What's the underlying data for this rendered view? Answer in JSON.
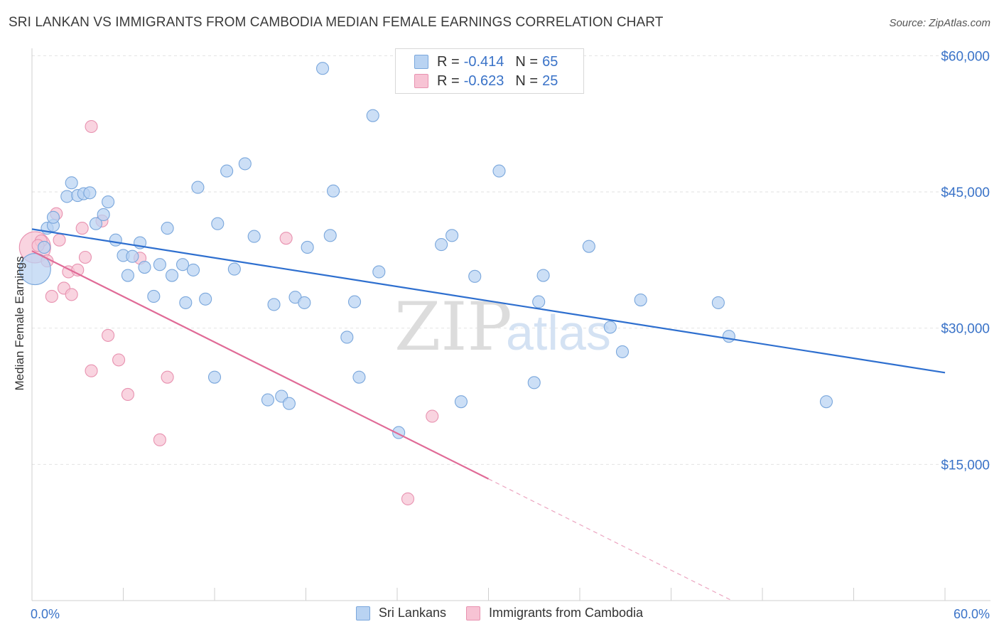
{
  "header": {
    "title": "SRI LANKAN VS IMMIGRANTS FROM CAMBODIA MEDIAN FEMALE EARNINGS CORRELATION CHART",
    "source": "Source: ZipAtlas.com"
  },
  "watermark": {
    "zip": "ZIP",
    "atlas": "atlas"
  },
  "legend_top": {
    "rows": [
      {
        "r_label": "R =",
        "r_value": "-0.414",
        "n_label": "N =",
        "n_value": "65"
      },
      {
        "r_label": "R =",
        "r_value": "-0.623",
        "n_label": "N =",
        "n_value": "25"
      }
    ]
  },
  "colors": {
    "blue_fill": "#b9d3f2",
    "blue_stroke": "#7aa7dc",
    "blue_line": "#2e6fcf",
    "pink_fill": "#f7c3d4",
    "pink_stroke": "#e892b0",
    "pink_line": "#e06b97",
    "accent_text": "#3a73c8",
    "grid": "#e2e2e2"
  },
  "chart_data": {
    "type": "scatter",
    "title": "SRI LANKAN VS IMMIGRANTS FROM CAMBODIA MEDIAN FEMALE EARNINGS CORRELATION CHART",
    "xlabel": "",
    "ylabel": "Median Female Earnings",
    "xlim": [
      0,
      60
    ],
    "ylim": [
      0,
      63000
    ],
    "x_tick_labels": [
      "0.0%",
      "60.0%"
    ],
    "y_ticks": [
      15000,
      30000,
      45000,
      60000
    ],
    "y_tick_labels": [
      "$15,000",
      "$30,000",
      "$45,000",
      "$60,000"
    ],
    "grid": true,
    "legend_position": "bottom",
    "series": [
      {
        "name": "Sri Lankans",
        "r": -0.414,
        "n": 65,
        "trend": {
          "x": [
            0,
            60
          ],
          "y": [
            40900,
            25100
          ]
        },
        "points": [
          [
            0.2,
            36500
          ],
          [
            0.8,
            38900
          ],
          [
            1.0,
            41000
          ],
          [
            1.4,
            41300
          ],
          [
            1.4,
            42200
          ],
          [
            2.3,
            44500
          ],
          [
            2.6,
            46000
          ],
          [
            3.0,
            44600
          ],
          [
            3.4,
            44800
          ],
          [
            3.8,
            44900
          ],
          [
            4.2,
            41500
          ],
          [
            4.7,
            42500
          ],
          [
            5.0,
            43900
          ],
          [
            5.5,
            39700
          ],
          [
            6.0,
            38000
          ],
          [
            6.3,
            35800
          ],
          [
            6.6,
            37900
          ],
          [
            7.1,
            39400
          ],
          [
            7.4,
            36700
          ],
          [
            8.0,
            33500
          ],
          [
            8.4,
            37000
          ],
          [
            8.9,
            41000
          ],
          [
            9.2,
            35800
          ],
          [
            9.9,
            37000
          ],
          [
            10.1,
            32800
          ],
          [
            10.6,
            36400
          ],
          [
            10.9,
            45500
          ],
          [
            11.4,
            33200
          ],
          [
            12.2,
            41500
          ],
          [
            12.0,
            24600
          ],
          [
            12.8,
            47300
          ],
          [
            13.3,
            36500
          ],
          [
            14.0,
            48100
          ],
          [
            14.6,
            40100
          ],
          [
            15.5,
            22100
          ],
          [
            15.9,
            32600
          ],
          [
            16.4,
            22500
          ],
          [
            16.9,
            21700
          ],
          [
            17.3,
            33400
          ],
          [
            17.9,
            32800
          ],
          [
            18.1,
            38900
          ],
          [
            19.1,
            58600
          ],
          [
            19.6,
            40200
          ],
          [
            19.8,
            45100
          ],
          [
            20.7,
            29000
          ],
          [
            21.2,
            32900
          ],
          [
            21.5,
            24600
          ],
          [
            22.8,
            36200
          ],
          [
            22.4,
            53400
          ],
          [
            24.1,
            18500
          ],
          [
            26.9,
            39200
          ],
          [
            27.6,
            40200
          ],
          [
            28.2,
            21900
          ],
          [
            29.1,
            35700
          ],
          [
            30.7,
            47300
          ],
          [
            33.0,
            24000
          ],
          [
            33.3,
            32900
          ],
          [
            33.6,
            35800
          ],
          [
            36.6,
            39000
          ],
          [
            38.0,
            30100
          ],
          [
            38.8,
            27400
          ],
          [
            40.0,
            33100
          ],
          [
            45.1,
            32800
          ],
          [
            45.8,
            29100
          ],
          [
            52.2,
            21900
          ]
        ]
      },
      {
        "name": "Immigrants from Cambodia",
        "r": -0.623,
        "n": 25,
        "trend": {
          "x": [
            0,
            30
          ],
          "y": [
            38500,
            13400
          ]
        },
        "trend_dashed": {
          "x": [
            30,
            46
          ],
          "y": [
            13400,
            0
          ]
        },
        "points": [
          [
            0.2,
            38900
          ],
          [
            0.6,
            39600
          ],
          [
            1.0,
            37400
          ],
          [
            1.3,
            33500
          ],
          [
            1.6,
            42600
          ],
          [
            1.8,
            39700
          ],
          [
            2.1,
            34400
          ],
          [
            2.4,
            36200
          ],
          [
            2.6,
            33700
          ],
          [
            3.0,
            36400
          ],
          [
            3.3,
            41000
          ],
          [
            3.5,
            37800
          ],
          [
            3.9,
            25300
          ],
          [
            3.9,
            52200
          ],
          [
            4.6,
            41800
          ],
          [
            5.0,
            29200
          ],
          [
            5.7,
            26500
          ],
          [
            6.3,
            22700
          ],
          [
            7.1,
            37700
          ],
          [
            8.4,
            17700
          ],
          [
            8.9,
            24600
          ],
          [
            16.7,
            39900
          ],
          [
            26.3,
            20300
          ],
          [
            24.7,
            11200
          ],
          [
            0.4,
            39100
          ]
        ]
      }
    ]
  }
}
